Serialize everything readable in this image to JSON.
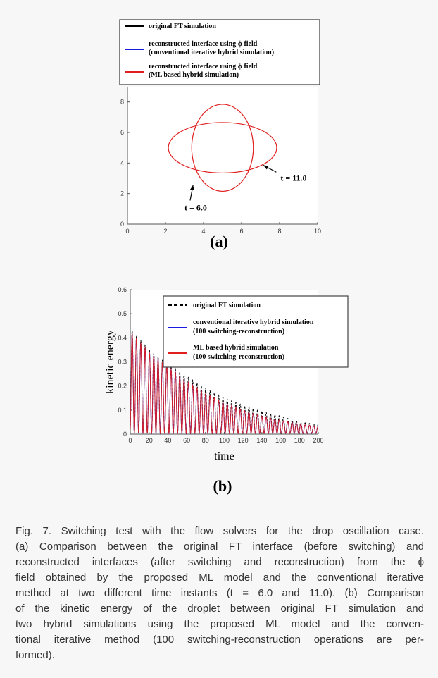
{
  "chart_data": [
    {
      "id": "a",
      "type": "line",
      "panel_label": "(a)",
      "xlim": [
        0,
        10
      ],
      "ylim": [
        0,
        9
      ],
      "xticks": [
        0,
        2,
        4,
        6,
        8,
        10
      ],
      "yticks": [
        0,
        2,
        4,
        6,
        8
      ],
      "grid": false,
      "legend": {
        "placement": "top",
        "entries": [
          {
            "color": "#000000",
            "dash": false,
            "text": [
              "original FT simulation"
            ]
          },
          {
            "color": "#1a1adf",
            "dash": false,
            "text": [
              "reconstructed interface using ϕ  field",
              "(conventional iterative hybrid simulation)"
            ]
          },
          {
            "color": "#e02020",
            "dash": false,
            "text": [
              "reconstructed interface using ϕ  field",
              "(ML based hybrid simulation)"
            ]
          }
        ]
      },
      "curves": [
        {
          "name": "t = 6.0",
          "shape": "ellipse",
          "cx": 5.0,
          "cy": 5.0,
          "rx": 1.62,
          "ry": 2.85,
          "color": "#e02020"
        },
        {
          "name": "t = 11.0",
          "shape": "ellipse",
          "cx": 5.0,
          "cy": 5.0,
          "rx": 2.85,
          "ry": 1.65,
          "color": "#e02020"
        }
      ],
      "annotations": [
        {
          "text": "t = 6.0",
          "text_x": 3.0,
          "text_y": 0.9,
          "arrow_to": [
            3.45,
            2.55
          ]
        },
        {
          "text": "t = 11.0",
          "text_x": 8.05,
          "text_y": 2.85,
          "arrow_to": [
            7.15,
            3.85
          ]
        }
      ]
    },
    {
      "id": "b",
      "type": "line",
      "panel_label": "(b)",
      "xlabel": "time",
      "ylabel": "kinetic energy",
      "xlim": [
        0,
        200
      ],
      "ylim": [
        0,
        0.6
      ],
      "xticks": [
        0,
        20,
        40,
        60,
        80,
        100,
        120,
        140,
        160,
        180,
        200
      ],
      "yticks": [
        0,
        0.1,
        0.2,
        0.3,
        0.4,
        0.5,
        0.6
      ],
      "grid": false,
      "legend": {
        "placement": "top-right",
        "entries": [
          {
            "color": "#000000",
            "dash": true,
            "text": [
              "original FT simulation"
            ]
          },
          {
            "color": "#1a1adf",
            "dash": false,
            "text": [
              "conventional iterative hybrid simulation",
              "(100 switching-reconstruction)"
            ]
          },
          {
            "color": "#e02020",
            "dash": false,
            "text": [
              "ML based hybrid simulation",
              "(100 switching-reconstruction)"
            ]
          }
        ]
      },
      "series": [
        {
          "name": "original FT simulation",
          "color": "#000000",
          "dash": true,
          "envelope_peaks": [
            [
              2,
              0.43
            ],
            [
              20,
              0.35
            ],
            [
              40,
              0.29
            ],
            [
              60,
              0.24
            ],
            [
              80,
              0.19
            ],
            [
              100,
              0.15
            ],
            [
              120,
              0.12
            ],
            [
              140,
              0.095
            ],
            [
              160,
              0.075
            ],
            [
              180,
              0.05
            ],
            [
              200,
              0.04
            ]
          ],
          "oscillation_period": 4.6,
          "minimum": 0.003
        },
        {
          "name": "conventional iterative hybrid simulation",
          "color": "#1a1adf",
          "dash": false,
          "envelope_peaks": [
            [
              2,
              0.42
            ],
            [
              20,
              0.34
            ],
            [
              40,
              0.28
            ],
            [
              60,
              0.22
            ],
            [
              80,
              0.17
            ],
            [
              100,
              0.13
            ],
            [
              120,
              0.1
            ],
            [
              140,
              0.075
            ],
            [
              160,
              0.058
            ],
            [
              180,
              0.042
            ],
            [
              200,
              0.033
            ]
          ],
          "oscillation_period": 4.6,
          "minimum": 0.003
        },
        {
          "name": "ML based hybrid simulation",
          "color": "#e02020",
          "dash": false,
          "envelope_peaks": [
            [
              2,
              0.42
            ],
            [
              20,
              0.34
            ],
            [
              40,
              0.28
            ],
            [
              60,
              0.22
            ],
            [
              80,
              0.17
            ],
            [
              100,
              0.13
            ],
            [
              120,
              0.1
            ],
            [
              140,
              0.075
            ],
            [
              160,
              0.058
            ],
            [
              180,
              0.042
            ],
            [
              200,
              0.033
            ]
          ],
          "oscillation_period": 4.6,
          "minimum": 0.003
        }
      ]
    }
  ],
  "caption": {
    "lines": [
      "Fig. 7. Switching test with the flow solvers for the drop oscillation case.",
      "(a) Comparison between the original FT interface (before switching) and",
      "reconstructed interfaces (after switching and reconstruction) from the ϕ",
      "field obtained by the proposed ML model and the conventional iterative",
      "method at two different time instants (t = 6.0 and 11.0). (b) Comparison",
      "of the kinetic energy of the droplet between original FT simulation and",
      "two hybrid simulations using the proposed ML model and the conven-",
      "tional iterative method (100 switching-reconstruction operations are per-",
      "formed)."
    ]
  }
}
